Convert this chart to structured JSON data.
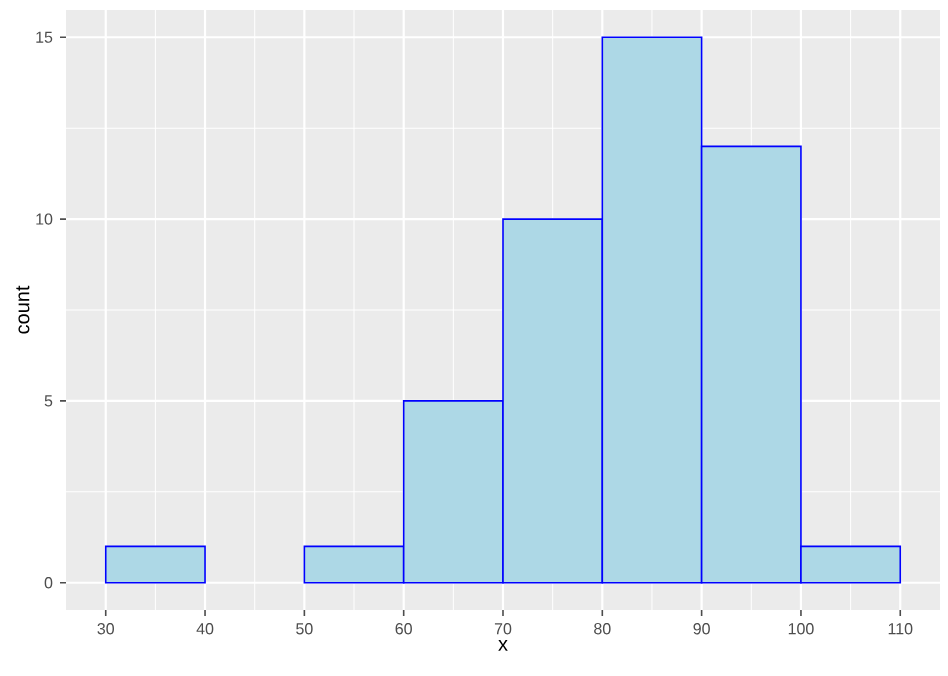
{
  "chart_data": {
    "type": "histogram",
    "xlabel": "x",
    "ylabel": "count",
    "bins": [
      30,
      40,
      50,
      60,
      70,
      80,
      90,
      100,
      110
    ],
    "values": [
      1,
      0,
      1,
      5,
      10,
      15,
      12,
      1
    ],
    "color": "#add8e6",
    "xlim": [
      26,
      114
    ],
    "ylim": [
      -0.75,
      15.75
    ],
    "xticks": [
      30,
      40,
      50,
      60,
      70,
      80,
      90,
      100,
      110
    ],
    "yticks": [
      0,
      5,
      10,
      15
    ],
    "grid": true
  }
}
